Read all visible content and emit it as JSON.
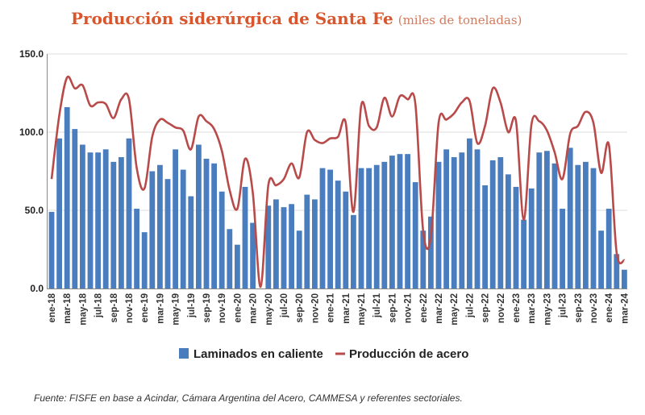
{
  "chart_data": {
    "type": "bar",
    "title": "Producción siderúrgica de Santa Fe",
    "subtitle": "(miles de toneladas)",
    "xlabel": "",
    "ylabel": "",
    "ylim": [
      0,
      150
    ],
    "yticks": [
      "0.0",
      "50.0",
      "100.0",
      "150.0"
    ],
    "ytick_values": [
      0,
      50,
      100,
      150
    ],
    "grid": true,
    "legend_position": "bottom",
    "months": [
      "ene-18",
      "feb-18",
      "mar-18",
      "abr-18",
      "may-18",
      "jun-18",
      "jul-18",
      "ago-18",
      "sep-18",
      "oct-18",
      "nov-18",
      "dic-18",
      "ene-19",
      "feb-19",
      "mar-19",
      "abr-19",
      "may-19",
      "jun-19",
      "jul-19",
      "ago-19",
      "sep-19",
      "oct-19",
      "nov-19",
      "dic-19",
      "ene-20",
      "feb-20",
      "mar-20",
      "abr-20",
      "may-20",
      "jun-20",
      "jul-20",
      "ago-20",
      "sep-20",
      "oct-20",
      "nov-20",
      "dic-20",
      "ene-21",
      "feb-21",
      "mar-21",
      "abr-21",
      "may-21",
      "jun-21",
      "jul-21",
      "ago-21",
      "sep-21",
      "oct-21",
      "nov-21",
      "dic-21",
      "ene-22",
      "feb-22",
      "mar-22",
      "abr-22",
      "may-22",
      "jun-22",
      "jul-22",
      "ago-22",
      "sep-22",
      "oct-22",
      "nov-22",
      "dic-22",
      "ene-23",
      "feb-23",
      "mar-23",
      "abr-23",
      "may-23",
      "jun-23",
      "jul-23",
      "ago-23",
      "sep-23",
      "oct-23",
      "nov-23",
      "dic-23",
      "ene-24",
      "feb-24",
      "mar-24"
    ],
    "tick_labels": [
      "ene-18",
      "mar-18",
      "may-18",
      "jul-18",
      "sep-18",
      "nov-18",
      "ene-19",
      "mar-19",
      "may-19",
      "jul-19",
      "sep-19",
      "nov-19",
      "ene-20",
      "mar-20",
      "may-20",
      "jul-20",
      "sep-20",
      "nov-20",
      "ene-21",
      "mar-21",
      "may-21",
      "jul-21",
      "sep-21",
      "nov-21",
      "ene-22",
      "mar-22",
      "may-22",
      "jul-22",
      "sep-22",
      "nov-22",
      "ene-23",
      "mar-23",
      "may-23",
      "jul-23",
      "sep-23",
      "nov-23",
      "ene-24",
      "mar-24"
    ],
    "series": [
      {
        "name": "Laminados en caliente",
        "type": "bar",
        "color": "#4a7dbd",
        "values": [
          49,
          96,
          116,
          102,
          92,
          87,
          87,
          89,
          81,
          84,
          96,
          51,
          36,
          75,
          79,
          70,
          89,
          76,
          59,
          92,
          83,
          80,
          62,
          38,
          28,
          65,
          42,
          0,
          53,
          57,
          52,
          54,
          37,
          60,
          57,
          77,
          76,
          69,
          62,
          47,
          77,
          77,
          79,
          81,
          85,
          86,
          86,
          68,
          37,
          46,
          81,
          89,
          84,
          87,
          96,
          89,
          66,
          82,
          84,
          73,
          65,
          44,
          64,
          87,
          88,
          80,
          51,
          90,
          79,
          81,
          77,
          37,
          51,
          22,
          12
        ]
      },
      {
        "name": "Producción de acero",
        "type": "line",
        "color": "#b94a4a",
        "values": [
          70,
          111,
          135,
          128,
          130,
          117,
          119,
          118,
          109,
          121,
          121,
          77,
          64,
          97,
          108,
          106,
          103,
          101,
          89,
          110,
          107,
          102,
          88,
          63,
          51,
          83,
          61,
          1,
          66,
          66,
          70,
          80,
          71,
          100,
          95,
          93,
          96,
          97,
          106,
          49,
          117,
          104,
          103,
          122,
          110,
          123,
          121,
          118,
          37,
          33,
          106,
          108,
          112,
          119,
          120,
          93,
          104,
          128,
          119,
          100,
          107,
          44,
          105,
          107,
          101,
          87,
          70,
          99,
          104,
          113,
          106,
          74,
          92,
          23,
          18
        ]
      }
    ]
  },
  "source": "Fuente: FISFE en base a Acindar, Cámara Argentina del Acero, CAMMESA y referentes sectoriales."
}
